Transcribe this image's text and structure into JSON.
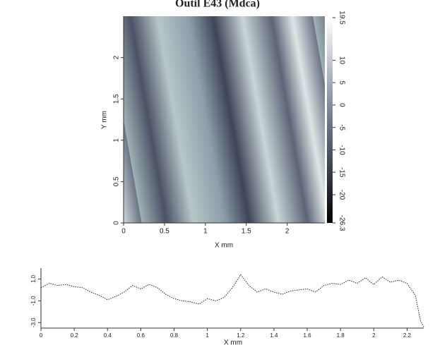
{
  "chart_data": [
    {
      "type": "heatmap",
      "title": "Outil E43 (Mdca)",
      "xlabel": "X mm",
      "ylabel": "Y mm",
      "xlim": [
        0,
        2.46
      ],
      "ylim": [
        0,
        2.5
      ],
      "xticks": [
        0,
        0.5,
        1,
        1.5,
        2
      ],
      "yticks": [
        0,
        0.5,
        1,
        1.5,
        2
      ],
      "colorbar_lim": [
        -26.3,
        19.5
      ],
      "colorbar_ticks": [
        19.5,
        10,
        5,
        0,
        -5,
        -10,
        -15,
        -20,
        -26.3
      ]
    },
    {
      "type": "line",
      "xlabel": "X mm",
      "color": "#222",
      "xlim": [
        0,
        2.3
      ],
      "ylim": [
        -3.5,
        2
      ],
      "xticks": [
        0,
        0.2,
        0.4,
        0.6,
        0.8,
        1,
        1.2,
        1.4,
        1.6,
        1.8,
        2,
        2.2
      ],
      "yticks": [
        {
          "value": 1,
          "label": "1.0"
        },
        {
          "value": -1,
          "label": "-1.0"
        },
        {
          "value": -3,
          "label": "-3.0"
        }
      ],
      "x": [
        0,
        0.05,
        0.1,
        0.15,
        0.2,
        0.25,
        0.3,
        0.35,
        0.4,
        0.45,
        0.5,
        0.55,
        0.6,
        0.65,
        0.7,
        0.75,
        0.8,
        0.85,
        0.9,
        0.95,
        1.0,
        1.05,
        1.1,
        1.15,
        1.2,
        1.25,
        1.3,
        1.35,
        1.4,
        1.45,
        1.5,
        1.55,
        1.6,
        1.65,
        1.7,
        1.75,
        1.8,
        1.85,
        1.9,
        1.95,
        2.0,
        2.05,
        2.1,
        2.15,
        2.2,
        2.25,
        2.28,
        2.3
      ],
      "values": [
        0.2,
        0.6,
        0.4,
        0.5,
        0.3,
        0.2,
        -0.2,
        -0.5,
        -0.9,
        -0.6,
        -0.2,
        0.4,
        0.1,
        0.5,
        0.2,
        -0.4,
        -0.8,
        -1.0,
        -1.1,
        -1.3,
        -0.8,
        -1.0,
        -0.7,
        0.2,
        1.4,
        0.4,
        -0.2,
        0.1,
        -0.2,
        -0.4,
        -0.1,
        0.0,
        0.1,
        -0.2,
        0.4,
        0.6,
        0.5,
        0.9,
        0.6,
        1.1,
        0.5,
        1.2,
        0.7,
        0.9,
        0.6,
        -0.5,
        -2.8,
        -3.4
      ]
    }
  ]
}
